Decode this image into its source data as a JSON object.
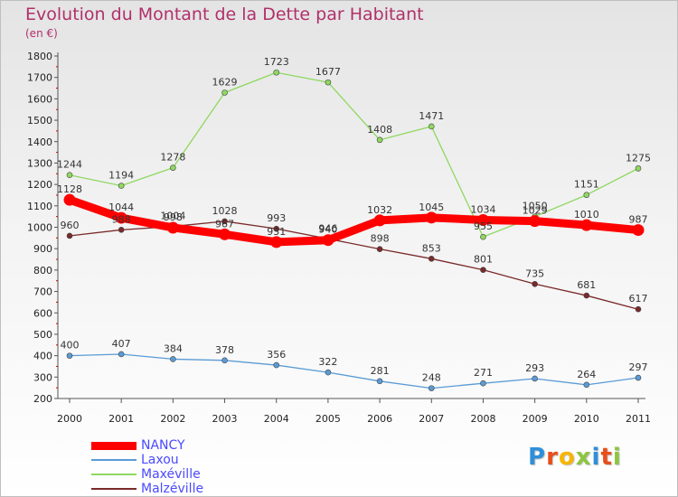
{
  "chart_data": {
    "type": "line",
    "title": "Evolution du Montant de la Dette par Habitant",
    "subtitle": "(en €)",
    "x": [
      "2000",
      "2001",
      "2002",
      "2003",
      "2004",
      "2005",
      "2006",
      "2007",
      "2008",
      "2009",
      "2010",
      "2011"
    ],
    "ylim": [
      200,
      1800
    ],
    "yticks": [
      200,
      300,
      400,
      500,
      600,
      700,
      800,
      900,
      1000,
      1100,
      1200,
      1300,
      1400,
      1500,
      1600,
      1700,
      1800
    ],
    "grid": false,
    "legend_position": "bottom-left",
    "series": [
      {
        "name": "NANCY",
        "color": "#ff0000",
        "values": [
          1128,
          1044,
          998,
          967,
          931,
          940,
          1032,
          1045,
          1034,
          1029,
          1010,
          987
        ]
      },
      {
        "name": "Laxou",
        "color": "#5a9bd5",
        "values": [
          400,
          407,
          384,
          378,
          356,
          322,
          281,
          248,
          271,
          293,
          264,
          297
        ]
      },
      {
        "name": "Maxéville",
        "color": "#8fd860",
        "values": [
          1244,
          1194,
          1278,
          1629,
          1723,
          1677,
          1408,
          1471,
          955,
          1050,
          1151,
          1275
        ]
      },
      {
        "name": "Malzéville",
        "color": "#7a2a2a",
        "values": [
          960,
          988,
          1004,
          1028,
          993,
          946,
          898,
          853,
          801,
          735,
          681,
          617
        ]
      }
    ]
  },
  "logo": {
    "letters": [
      {
        "ch": "P",
        "color": "#2f8fd8"
      },
      {
        "ch": "r",
        "color": "#e94e1b"
      },
      {
        "ch": "o",
        "color": "#f7b500"
      },
      {
        "ch": "x",
        "color": "#8cc63f"
      },
      {
        "ch": "i",
        "color": "#2f8fd8"
      },
      {
        "ch": "t",
        "color": "#e94e1b"
      },
      {
        "ch": "i",
        "color": "#8cc63f"
      }
    ]
  }
}
